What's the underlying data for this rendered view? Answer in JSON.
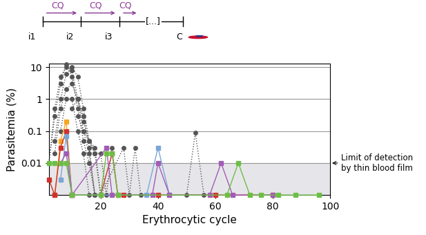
{
  "chart_data": {
    "type": "line",
    "x_label": "Erythrocytic cycle",
    "y_label": "Parasitemia (%)",
    "log": "y",
    "grid": true,
    "xlim": [
      2,
      100
    ],
    "xticks": [
      20,
      40,
      60,
      80,
      100
    ],
    "ylim": [
      0.001,
      13
    ],
    "yticks": [
      0.01,
      0.1,
      1,
      10
    ],
    "detection_limit": 0.01,
    "detection_label": "Limit of detection\nby thin blood film",
    "schematic": {
      "infections": [
        "i1",
        "i2",
        "i3"
      ],
      "ellipsis": "[...]",
      "control": "C",
      "treatments": [
        "CQ",
        "CQ",
        "CQ"
      ]
    },
    "series": [
      {
        "color": "#555555",
        "marker": "o",
        "line_style": "dotted",
        "x": [
          2,
          4,
          6,
          8,
          10,
          12,
          14,
          16,
          18
        ],
        "values": [
          0.01,
          0.3,
          3,
          12,
          5,
          0.5,
          0.05,
          0.01,
          0.001
        ]
      },
      {
        "color": "#555555",
        "marker": "o",
        "line_style": "dotted",
        "x": [
          2,
          4,
          6,
          8,
          10,
          12,
          14,
          16,
          18
        ],
        "values": [
          0.01,
          0.5,
          5,
          10,
          8,
          1,
          0.1,
          0.02,
          0.001
        ]
      },
      {
        "color": "#555555",
        "marker": "o",
        "line_style": "dotted",
        "x": [
          4,
          6,
          8,
          10,
          12,
          14,
          16,
          18,
          20
        ],
        "values": [
          0.05,
          1,
          6,
          10,
          5,
          0.5,
          0.05,
          0.02,
          0.001
        ]
      },
      {
        "color": "#555555",
        "marker": "o",
        "line_style": "dotted",
        "x": [
          4,
          6,
          8,
          10,
          12,
          14,
          16,
          18
        ],
        "values": [
          0.02,
          0.5,
          2,
          3,
          1,
          0.3,
          0.03,
          0.001
        ]
      },
      {
        "color": "#555555",
        "marker": "o",
        "line_style": "dotted",
        "x": [
          6,
          8,
          10,
          12,
          14,
          16
        ],
        "values": [
          0.1,
          1,
          1,
          0.1,
          0.02,
          0.001
        ]
      },
      {
        "color": "#555555",
        "marker": "o",
        "line_style": "dotted",
        "x": [
          10,
          12,
          14,
          16,
          18,
          20,
          22,
          24,
          26
        ],
        "values": [
          0.5,
          1,
          0.2,
          0.05,
          0.02,
          0.02,
          0.001,
          0.03,
          0.001
        ]
      },
      {
        "color": "#555555",
        "marker": "o",
        "line_style": "dotted",
        "x": [
          12,
          14,
          16,
          18,
          20,
          28,
          30,
          32,
          34
        ],
        "values": [
          0.3,
          0.1,
          0.05,
          0.03,
          0.001,
          0.03,
          0.001,
          0.03,
          0.001
        ]
      },
      {
        "color": "#555555",
        "marker": "o",
        "line_style": "dotted",
        "x": [
          50,
          53,
          56
        ],
        "values": [
          0.001,
          0.09,
          0.001
        ]
      },
      {
        "color": "#F5A623",
        "marker": "s",
        "line_style": "solid",
        "x": [
          4,
          6,
          8,
          10
        ],
        "values": [
          0.001,
          0.05,
          0.2,
          0.001
        ]
      },
      {
        "color": "#D0312D",
        "marker": "s",
        "line_style": "solid",
        "x": [
          2,
          4,
          6,
          8,
          10,
          20,
          24,
          26,
          28,
          40,
          60,
          80
        ],
        "values": [
          0.003,
          0.001,
          0.03,
          0.1,
          0.001,
          0.001,
          0.02,
          0.001,
          0.001,
          0.001,
          0.001,
          0.001
        ]
      },
      {
        "color": "#7AA6D6",
        "marker": "s",
        "line_style": "solid",
        "x": [
          6,
          8,
          10,
          36,
          40,
          44
        ],
        "values": [
          0.003,
          0.07,
          0.001,
          0.001,
          0.03,
          0.001
        ]
      },
      {
        "color": "#A25BB5",
        "marker": "s",
        "line_style": "solid",
        "x": [
          6,
          8,
          10,
          22,
          24,
          38,
          40,
          44,
          58,
          62,
          66,
          80
        ],
        "values": [
          0.01,
          0.02,
          0.001,
          0.03,
          0.001,
          0.001,
          0.01,
          0.001,
          0.001,
          0.01,
          0.001,
          0.001
        ]
      },
      {
        "color": "#6DBE45",
        "marker": "s",
        "line_style": "solid",
        "x": [
          2,
          4,
          6,
          8,
          10,
          20,
          22,
          24,
          26,
          64,
          68,
          72,
          76,
          82,
          88,
          96
        ],
        "values": [
          0.01,
          0.01,
          0.01,
          0.01,
          0.001,
          0.001,
          0.02,
          0.02,
          0.001,
          0.001,
          0.01,
          0.001,
          0.001,
          0.001,
          0.001,
          0.001
        ]
      }
    ]
  }
}
